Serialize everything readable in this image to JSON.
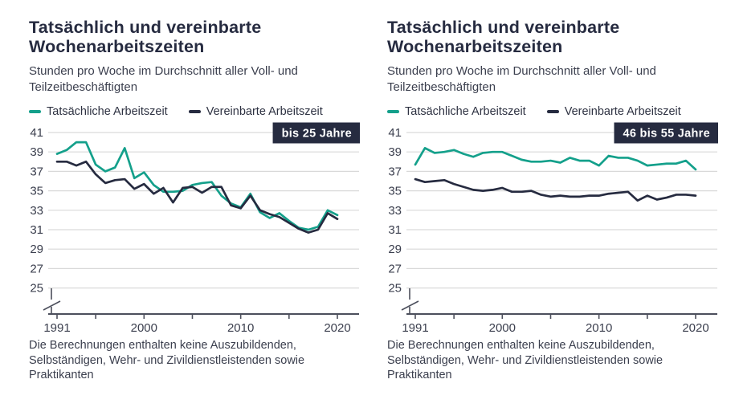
{
  "colors": {
    "actual": "#14a08b",
    "agreed": "#262b40",
    "badge_bg": "#262b40",
    "badge_text": "#ffffff",
    "grid": "#d9d9d9",
    "axis": "#4c4f5c",
    "title": "#262b40",
    "text": "#3b3f4e"
  },
  "legend": {
    "items": [
      {
        "label": "Tatsächliche Arbeitszeit",
        "color_key": "actual"
      },
      {
        "label": "Vereinbarte Arbeitszeit",
        "color_key": "agreed"
      }
    ]
  },
  "panels": [
    {
      "title_line1": "Tatsächlich und vereinbarte",
      "title_line2": "Wochenarbeitszeiten",
      "subtitle": "Stunden pro Woche im Durchschnitt aller Voll- und Teilzeitbeschäftigten",
      "badge": "bis 25 Jahre",
      "footnote": "Die Berechnungen enthalten keine Auszubildenden, Selbständigen, Wehr- und Zivildienstleistenden sowie Praktikanten"
    },
    {
      "title_line1": "Tatsächlich und vereinbarte",
      "title_line2": "Wochenarbeitszeiten",
      "subtitle": "Stunden pro Woche im Durchschnitt aller Voll- und Teilzeitbeschäftigten",
      "badge": "46 bis 55 Jahre",
      "footnote": "Die Berechnungen enthalten keine Auszubildenden, Selbständigen, Wehr- und Zivildienstleistenden sowie Praktikanten"
    }
  ],
  "chart_data": [
    {
      "type": "line",
      "title": "Tatsächlich und vereinbarte Wochenarbeitszeiten",
      "subtitle": "Stunden pro Woche im Durchschnitt aller Voll- und Teilzeitbeschäftigten",
      "badge": "bis 25 Jahre",
      "ylim": [
        25,
        41
      ],
      "yticks": [
        41,
        39,
        37,
        35,
        33,
        31,
        29,
        27,
        25
      ],
      "xticks": [
        1991,
        1995,
        2000,
        2005,
        2010,
        2015,
        2020
      ],
      "xtick_labels": [
        1991,
        2000,
        2010,
        2020
      ],
      "grid": true,
      "axis_break": true,
      "legend_position": "top",
      "x": [
        1991,
        1992,
        1993,
        1994,
        1995,
        1996,
        1997,
        1998,
        1999,
        2000,
        2001,
        2002,
        2003,
        2004,
        2005,
        2006,
        2007,
        2008,
        2009,
        2010,
        2011,
        2012,
        2013,
        2014,
        2015,
        2016,
        2017,
        2018,
        2019,
        2020
      ],
      "series": [
        {
          "name": "Tatsächliche Arbeitszeit",
          "color": "#14a08b",
          "values": [
            38.8,
            39.2,
            40.0,
            40.0,
            37.7,
            37.0,
            37.4,
            39.4,
            36.3,
            36.9,
            35.6,
            34.9,
            34.9,
            35.0,
            35.6,
            35.8,
            35.9,
            34.5,
            33.7,
            33.3,
            34.7,
            32.8,
            32.2,
            32.7,
            31.9,
            31.2,
            31.0,
            31.3,
            33.0,
            32.5
          ]
        },
        {
          "name": "Vereinbarte Arbeitszeit",
          "color": "#262b40",
          "values": [
            38.0,
            38.0,
            37.6,
            38.0,
            36.7,
            35.8,
            36.1,
            36.2,
            35.2,
            35.7,
            34.7,
            35.3,
            33.8,
            35.3,
            35.4,
            34.8,
            35.4,
            35.4,
            33.5,
            33.2,
            34.5,
            33.0,
            32.6,
            32.3,
            31.7,
            31.1,
            30.7,
            31.0,
            32.7,
            32.1
          ]
        }
      ]
    },
    {
      "type": "line",
      "title": "Tatsächlich und vereinbarte Wochenarbeitszeiten",
      "subtitle": "Stunden pro Woche im Durchschnitt aller Voll- und Teilzeitbeschäftigten",
      "badge": "46 bis 55 Jahre",
      "ylim": [
        25,
        41
      ],
      "yticks": [
        41,
        39,
        37,
        35,
        33,
        31,
        29,
        27,
        25
      ],
      "xticks": [
        1991,
        1995,
        2000,
        2005,
        2010,
        2015,
        2020
      ],
      "xtick_labels": [
        1991,
        2000,
        2010,
        2020
      ],
      "grid": true,
      "axis_break": true,
      "legend_position": "top",
      "x": [
        1991,
        1992,
        1993,
        1994,
        1995,
        1996,
        1997,
        1998,
        1999,
        2000,
        2001,
        2002,
        2003,
        2004,
        2005,
        2006,
        2007,
        2008,
        2009,
        2010,
        2011,
        2012,
        2013,
        2014,
        2015,
        2016,
        2017,
        2018,
        2019,
        2020
      ],
      "series": [
        {
          "name": "Tatsächliche Arbeitszeit",
          "color": "#14a08b",
          "values": [
            37.7,
            39.4,
            38.9,
            39.0,
            39.2,
            38.8,
            38.5,
            38.9,
            39.0,
            39.0,
            38.6,
            38.2,
            38.0,
            38.0,
            38.1,
            37.9,
            38.4,
            38.1,
            38.1,
            37.6,
            38.6,
            38.4,
            38.4,
            38.1,
            37.6,
            37.7,
            37.8,
            37.8,
            38.1,
            37.2
          ]
        },
        {
          "name": "Vereinbarte Arbeitszeit",
          "color": "#262b40",
          "values": [
            36.2,
            35.9,
            36.0,
            36.1,
            35.7,
            35.4,
            35.1,
            35.0,
            35.1,
            35.3,
            34.9,
            34.9,
            35.0,
            34.6,
            34.4,
            34.5,
            34.4,
            34.4,
            34.5,
            34.5,
            34.7,
            34.8,
            34.9,
            34.0,
            34.5,
            34.1,
            34.3,
            34.6,
            34.6,
            34.5
          ]
        }
      ]
    }
  ]
}
